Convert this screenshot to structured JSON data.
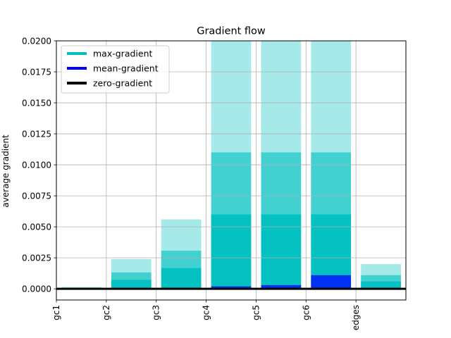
{
  "chart_data": {
    "type": "bar",
    "title": "Gradient flow",
    "xlabel": "",
    "ylabel": "average gradient",
    "categories": [
      "gc1",
      "gc2",
      "gc3",
      "gc4",
      "gc5",
      "gc6",
      "edges"
    ],
    "xlim": [
      0,
      7
    ],
    "ylim": [
      -0.0009,
      0.02
    ],
    "yticks": [
      "0.0000",
      "0.0025",
      "0.0050",
      "0.0075",
      "0.0100",
      "0.0125",
      "0.0150",
      "0.0175",
      "0.0200"
    ],
    "grid": true,
    "legend_position": "upper-left",
    "series": [
      {
        "name": "max-gradient",
        "color": "#00bfbf",
        "values": [
          0.00015,
          0.0024,
          0.0056,
          0.02,
          0.02,
          0.02,
          0.002
        ]
      },
      {
        "name": "mean-gradient",
        "color": "#0000ff",
        "values": [
          2e-05,
          5e-05,
          8e-05,
          0.0002,
          0.0003,
          0.0011,
          3e-05
        ]
      },
      {
        "name": "zero-gradient",
        "color": "#000000",
        "values": [
          0,
          0,
          0,
          0,
          0,
          0,
          0
        ]
      }
    ]
  }
}
